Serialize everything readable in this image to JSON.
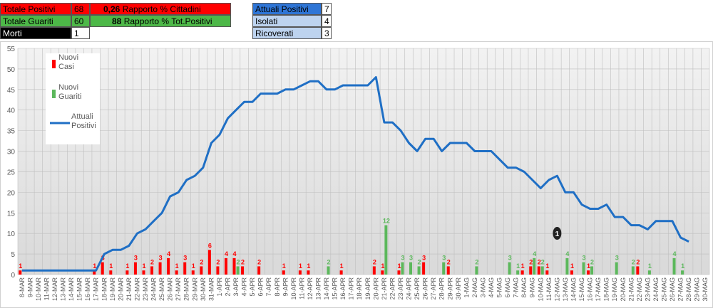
{
  "summary": {
    "totale_positivi": {
      "label": "Totale Positivi",
      "value": "68",
      "pct": "0,26",
      "pct_label": "Rapporto % Cittadini"
    },
    "totale_guariti": {
      "label": "Totale Guariti",
      "value": "60",
      "pct": "88",
      "pct_label": "Rapporto % Tot.Positivi"
    },
    "morti": {
      "label": "Morti",
      "value": "1"
    },
    "attuali_positivi": {
      "label": "Attuali Positivi",
      "value": "7"
    },
    "isolati": {
      "label": "Isolati",
      "value": "4"
    },
    "ricoverati": {
      "label": "Ricoverati",
      "value": "3"
    }
  },
  "colors": {
    "nuovi_casi": "#ff0000",
    "nuovi_guariti": "#5cb85c",
    "attuali_positivi": "#1f6fc5",
    "grid": "#bfbfbf",
    "plot_bg": "#e6e6e6"
  },
  "chart_data": {
    "type": "bar",
    "title": "",
    "xlabel": "",
    "ylabel": "",
    "ylim": [
      0,
      55
    ],
    "yticks": [
      0,
      5,
      10,
      15,
      20,
      25,
      30,
      35,
      40,
      45,
      50,
      55
    ],
    "grid": true,
    "legend_position": "top-left",
    "categories": [
      "8-MAR",
      "9-MAR",
      "10-MAR",
      "11-MAR",
      "12-MAR",
      "13-MAR",
      "14-MAR",
      "15-MAR",
      "16-MAR",
      "17-MAR",
      "18-MAR",
      "19-MAR",
      "20-MAR",
      "21-MAR",
      "22-MAR",
      "23-MAR",
      "24-MAR",
      "25-MAR",
      "26-MAR",
      "27-MAR",
      "28-MAR",
      "29-MAR",
      "30-MAR",
      "31-MAR",
      "1-APR",
      "2-APR",
      "3-APR",
      "4-APR",
      "5-APR",
      "6-APR",
      "7-APR",
      "8-APR",
      "9-APR",
      "10-APR",
      "11-APR",
      "12-APR",
      "13-APR",
      "14-APR",
      "15-APR",
      "16-APR",
      "17-APR",
      "18-APR",
      "19-APR",
      "20-APR",
      "21-APR",
      "22-APR",
      "23-APR",
      "24-APR",
      "25-APR",
      "26-APR",
      "27-APR",
      "28-APR",
      "29-APR",
      "30-APR",
      "1-MAG",
      "2-MAG",
      "3-MAG",
      "4-MAG",
      "5-MAG",
      "6-MAG",
      "7-MAG",
      "8-MAG",
      "9-MAG",
      "10-MAG",
      "11-MAG",
      "12-MAG",
      "13-MAG",
      "14-MAG",
      "15-MAG",
      "16-MAG",
      "17-MAG",
      "18-MAG",
      "19-MAG",
      "20-MAG",
      "21-MAG",
      "22-MAG",
      "23-MAG",
      "24-MAG",
      "25-MAG",
      "26-MAG",
      "27-MAG",
      "28-MAG",
      "29-MAG",
      "30-MAG"
    ],
    "series": [
      {
        "name": "Nuovi Casi",
        "kind": "bar",
        "values": [
          1,
          0,
          0,
          0,
          0,
          0,
          0,
          0,
          0,
          1,
          3,
          1,
          0,
          1,
          3,
          1,
          2,
          3,
          4,
          1,
          3,
          1,
          2,
          6,
          2,
          4,
          4,
          2,
          0,
          2,
          0,
          0,
          1,
          0,
          1,
          1,
          0,
          0,
          0,
          1,
          0,
          0,
          0,
          2,
          1,
          0,
          1,
          0,
          0,
          3,
          0,
          0,
          2,
          0,
          0,
          0,
          0,
          0,
          0,
          0,
          0,
          1,
          2,
          2,
          1,
          0,
          0,
          1,
          0,
          1,
          0,
          0,
          0,
          0,
          0,
          2,
          0,
          0,
          0,
          0,
          0,
          0,
          0,
          0
        ]
      },
      {
        "name": "Nuovi Guariti",
        "kind": "bar",
        "values": [
          0,
          0,
          0,
          0,
          0,
          0,
          0,
          0,
          0,
          0,
          0,
          0,
          0,
          0,
          0,
          0,
          0,
          0,
          0,
          0,
          0,
          0,
          0,
          0,
          0,
          0,
          2,
          0,
          0,
          0,
          0,
          0,
          0,
          0,
          0,
          0,
          0,
          2,
          0,
          0,
          0,
          0,
          0,
          0,
          12,
          0,
          3,
          3,
          2,
          0,
          0,
          3,
          0,
          0,
          0,
          2,
          0,
          0,
          0,
          3,
          1,
          0,
          4,
          2,
          0,
          0,
          4,
          0,
          3,
          2,
          0,
          0,
          3,
          0,
          2,
          0,
          1,
          0,
          0,
          4,
          1,
          0,
          0,
          0
        ]
      },
      {
        "name": "Attuali Positivi",
        "kind": "line",
        "values": [
          1,
          1,
          1,
          1,
          1,
          1,
          1,
          1,
          1,
          1,
          5,
          6,
          6,
          7,
          10,
          11,
          13,
          15,
          19,
          20,
          23,
          24,
          26,
          32,
          34,
          38,
          40,
          42,
          42,
          44,
          44,
          44,
          45,
          45,
          46,
          47,
          47,
          45,
          45,
          46,
          46,
          46,
          46,
          48,
          37,
          37,
          35,
          32,
          30,
          33,
          33,
          30,
          32,
          32,
          32,
          30,
          30,
          30,
          28,
          26,
          26,
          25,
          23,
          21,
          23,
          24,
          20,
          20,
          17,
          16,
          16,
          17,
          14,
          14,
          12,
          12,
          11,
          13,
          13,
          13,
          9,
          8,
          null,
          null
        ]
      }
    ],
    "annotations": [
      {
        "category": "12-MAG",
        "text": "1"
      }
    ]
  }
}
